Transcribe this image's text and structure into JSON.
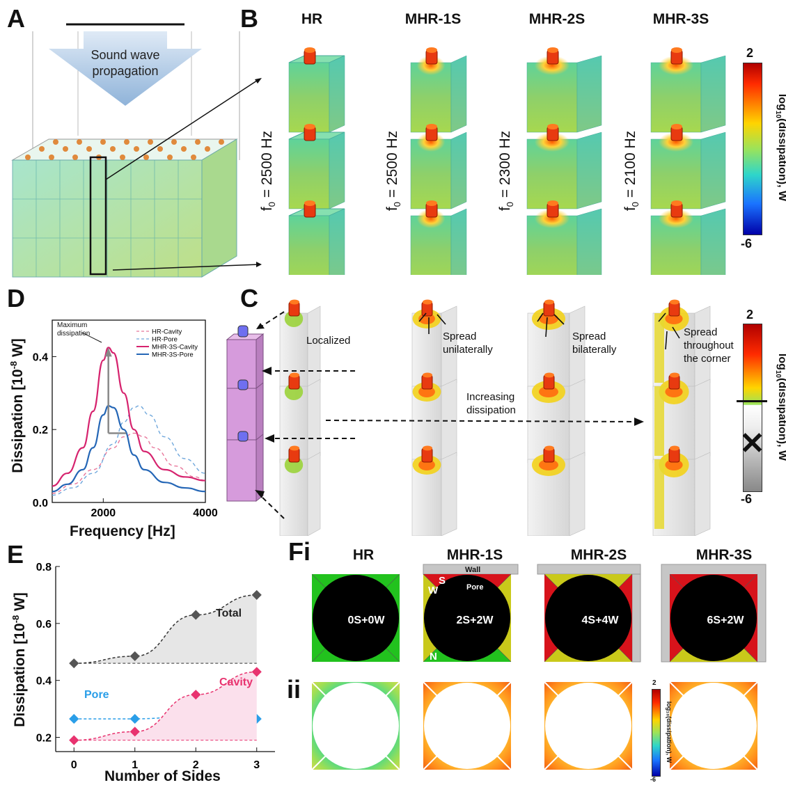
{
  "panel_labels": {
    "A": "A",
    "B": "B",
    "C": "C",
    "D": "D",
    "E": "E",
    "F": "Fi",
    "Fii": "ii"
  },
  "panelA": {
    "arrow_line1": "Sound wave",
    "arrow_line2": "propagation"
  },
  "panelB": {
    "columns": [
      {
        "title": "HR",
        "freq": "f",
        "sub": "0",
        "eq": " = 2500 Hz"
      },
      {
        "title": "MHR-1S",
        "freq": "f",
        "sub": "0",
        "eq": " = 2500 Hz"
      },
      {
        "title": "MHR-2S",
        "freq": "f",
        "sub": "0",
        "eq": " = 2300 Hz"
      },
      {
        "title": "MHR-3S",
        "freq": "f",
        "sub": "0",
        "eq": " = 2100 Hz"
      }
    ],
    "colorbar": {
      "max": "2",
      "min": "-6",
      "label_pre": "log",
      "label_sub": "10",
      "label_post": "(dissipation), W"
    }
  },
  "panelC": {
    "annotations": {
      "localized": "Localized",
      "spread1a": "Spread",
      "spread1b": "unilaterally",
      "spread2a": "Spread",
      "spread2b": "bilaterally",
      "spread3a": "Spread",
      "spread3b": "throughout",
      "spread3c": "the corner",
      "inc1": "Increasing",
      "inc2": "dissipation"
    },
    "colorbar": {
      "max": "2",
      "min": "-6",
      "label_pre": "log",
      "label_sub": "10",
      "label_post": "(dissipation), W"
    }
  },
  "panelD": {
    "ylabel_pre": "Dissipation [10",
    "ylabel_sup": "-8",
    "ylabel_post": " W]",
    "xlabel": "Frequency [Hz]",
    "annotation_1": "Maximum",
    "annotation_2": "dissipation",
    "yticks": [
      "0.0",
      "0.2",
      "0.4"
    ],
    "xticks": [
      "2000",
      "4000"
    ]
  },
  "panelE": {
    "ylabel_pre": "Dissipation [10",
    "ylabel_sup": "-8",
    "ylabel_post": " W]",
    "xlabel": "Number of Sides",
    "total_label": "Total",
    "pore_label": "Pore",
    "cavity_label": "Cavity",
    "yticks": [
      "0.2",
      "0.4",
      "0.6",
      "0.8"
    ],
    "xticks": [
      "0",
      "1",
      "2",
      "3"
    ]
  },
  "panelF": {
    "columns": [
      {
        "title": "HR",
        "code": "0S+0W"
      },
      {
        "title": "MHR-1S",
        "code": "2S+2W"
      },
      {
        "title": "MHR-2S",
        "code": "4S+4W"
      },
      {
        "title": "MHR-3S",
        "code": "6S+2W"
      }
    ],
    "wall_label": "Wall",
    "pore_label": "Pore",
    "s_label": "S",
    "w_label": "W",
    "n_label": "N",
    "colorbar": {
      "max": "2",
      "min": "-6",
      "label": "log₁₀(dissipation), W"
    }
  },
  "chart_data": [
    {
      "type": "line",
      "title": "",
      "xlabel": "Frequency [Hz]",
      "ylabel": "Dissipation [10^-8 W]",
      "xlim": [
        1000,
        4000
      ],
      "ylim": [
        0,
        0.5
      ],
      "series": [
        {
          "name": "HR-Cavity",
          "color": "#e8769a",
          "dash": true,
          "x": [
            1000,
            1400,
            1800,
            2200,
            2400,
            2600,
            2800,
            3000,
            3400,
            3800,
            4000
          ],
          "values": [
            0.025,
            0.05,
            0.09,
            0.15,
            0.18,
            0.19,
            0.18,
            0.15,
            0.1,
            0.07,
            0.06
          ]
        },
        {
          "name": "HR-Pore",
          "color": "#6fa7dc",
          "dash": true,
          "x": [
            1000,
            1400,
            1800,
            2200,
            2400,
            2600,
            2700,
            2900,
            3200,
            3600,
            4000
          ],
          "values": [
            0.02,
            0.04,
            0.08,
            0.16,
            0.22,
            0.26,
            0.265,
            0.24,
            0.18,
            0.12,
            0.08
          ]
        },
        {
          "name": "MHR-3S-Cavity",
          "color": "#d6236e",
          "dash": false,
          "x": [
            1000,
            1300,
            1600,
            1800,
            2000,
            2100,
            2200,
            2400,
            2600,
            2800,
            3200,
            3600,
            4000
          ],
          "values": [
            0.045,
            0.08,
            0.15,
            0.25,
            0.39,
            0.425,
            0.41,
            0.3,
            0.2,
            0.14,
            0.09,
            0.07,
            0.06
          ]
        },
        {
          "name": "MHR-3S-Pore",
          "color": "#2466b6",
          "dash": false,
          "x": [
            1000,
            1300,
            1600,
            1800,
            2000,
            2100,
            2200,
            2400,
            2600,
            2800,
            3200,
            3600,
            4000
          ],
          "values": [
            0.03,
            0.05,
            0.09,
            0.15,
            0.24,
            0.265,
            0.26,
            0.2,
            0.13,
            0.09,
            0.055,
            0.04,
            0.03
          ]
        }
      ]
    },
    {
      "type": "line",
      "title": "",
      "xlabel": "Number of Sides",
      "ylabel": "Dissipation [10^-8 W]",
      "xlim": [
        -0.3,
        3.3
      ],
      "ylim": [
        0.15,
        0.8
      ],
      "categories": [
        0,
        1,
        2,
        3
      ],
      "series": [
        {
          "name": "Total",
          "color": "#333333",
          "marker": "#555555",
          "values": [
            0.46,
            0.485,
            0.63,
            0.7
          ]
        },
        {
          "name": "Pore",
          "color": "#2a9ee8",
          "marker": "#2a9ee8",
          "values": [
            0.265,
            0.265,
            0.275,
            0.265
          ]
        },
        {
          "name": "Cavity",
          "color": "#e8336f",
          "marker": "#e8336f",
          "values": [
            0.19,
            0.22,
            0.35,
            0.43
          ]
        }
      ],
      "baselines": [
        0.46,
        0.19
      ]
    }
  ]
}
